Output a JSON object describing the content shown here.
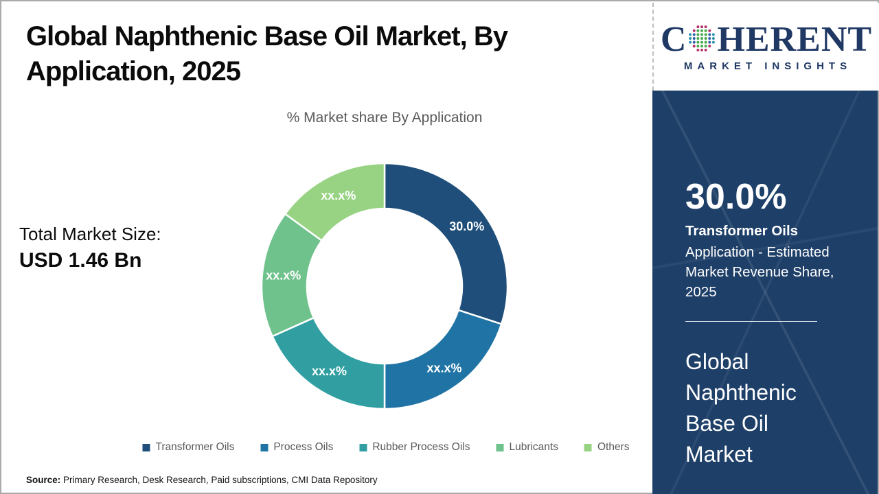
{
  "header": {
    "title": "Global Naphthenic Base Oil Market, By\nApplication, 2025",
    "subtitle": "% Market share By Application"
  },
  "logo": {
    "brand": "Coherent Market Insights",
    "word_start": "C",
    "word_end": "HERENT",
    "subtext": "MARKET INSIGHTS",
    "color": "#1F3864",
    "globe_icon": "dotted-globe",
    "globe_colors": {
      "ring_vertical": "#b5306a",
      "ring_horizontal": "#2b93ac",
      "inner_center": "#45a949",
      "inner_side": "#3161a8"
    }
  },
  "stats": {
    "total_label": "Total Market Size:",
    "total_value": "USD 1.46 Bn"
  },
  "chart_data": {
    "type": "pie",
    "subtype": "donut",
    "title": "% Market share By Application",
    "categories": [
      "Transformer Oils",
      "Process Oils",
      "Rubber Process Oils",
      "Lubricants",
      "Others"
    ],
    "values": [
      30.0,
      20.0,
      18.3,
      16.7,
      15.0
    ],
    "values_note": "only the first slice value (30.0%) is printed; remaining slice labels are masked as xx.x% and values are estimated from arc angles",
    "labels_display": [
      "30.0%",
      "xx.x%",
      "xx.x%",
      "xx.x%",
      "xx.x%"
    ],
    "colors": [
      "#1E4E79",
      "#2074A5",
      "#319FA2",
      "#6FC28C",
      "#98D383"
    ],
    "start_angle_deg_from_top": 0,
    "direction": "clockwise",
    "inner_radius_ratio": 0.63,
    "legend_position": "bottom",
    "slice_label_color": "#ffffff"
  },
  "side_panel": {
    "background": "#1E3F68",
    "headline_value": "30.0%",
    "headline_segment": "Transformer Oils",
    "description": "Application - Estimated\nMarket Revenue Share,\n2025",
    "market_name": "Global\nNaphthenic\nBase Oil\nMarket"
  },
  "footer": {
    "source_label": "Source:",
    "source_text": " Primary Research, Desk Research, Paid subscriptions, CMI Data Repository"
  }
}
